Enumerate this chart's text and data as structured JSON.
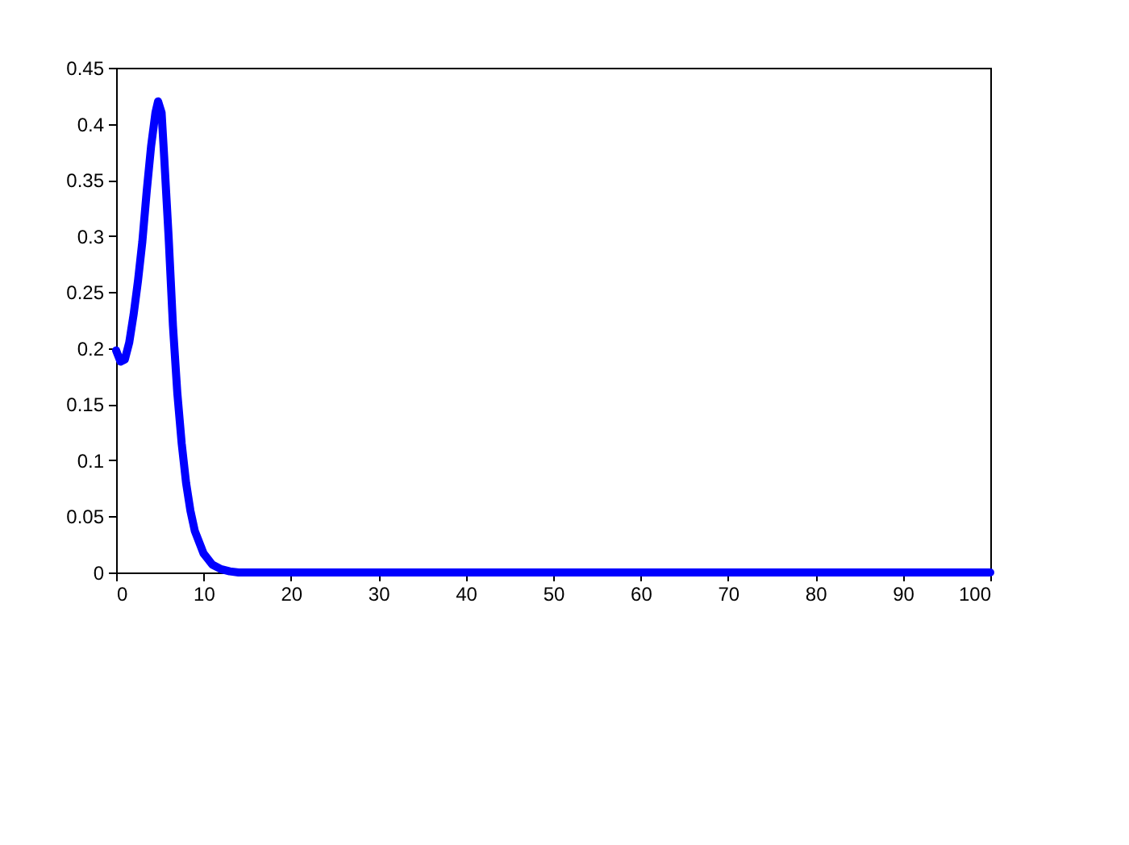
{
  "chart_data": {
    "type": "line",
    "x": [
      0,
      0.5,
      1,
      1.5,
      2,
      2.5,
      3,
      3.5,
      4,
      4.5,
      4.8,
      5.2,
      5.5,
      6,
      6.5,
      7,
      7.5,
      8,
      8.5,
      9,
      10,
      11,
      12,
      13,
      14,
      20,
      40,
      60,
      80,
      100
    ],
    "series": [
      {
        "color": "#0000ff",
        "values": [
          0.198,
          0.188,
          0.19,
          0.205,
          0.23,
          0.26,
          0.295,
          0.34,
          0.38,
          0.41,
          0.42,
          0.41,
          0.37,
          0.3,
          0.22,
          0.16,
          0.115,
          0.08,
          0.055,
          0.037,
          0.017,
          0.007,
          0.003,
          0.001,
          0,
          0,
          0,
          0,
          0,
          0
        ]
      }
    ],
    "xlim": [
      0,
      100
    ],
    "xticks": [
      0,
      10,
      20,
      30,
      40,
      50,
      60,
      70,
      80,
      90,
      100
    ],
    "ylim": [
      0,
      0.45
    ],
    "yticks": [
      0,
      0.05,
      0.1,
      0.15,
      0.2,
      0.25,
      0.3,
      0.35,
      0.4,
      0.45
    ],
    "grid": false,
    "line_style": "solid"
  }
}
